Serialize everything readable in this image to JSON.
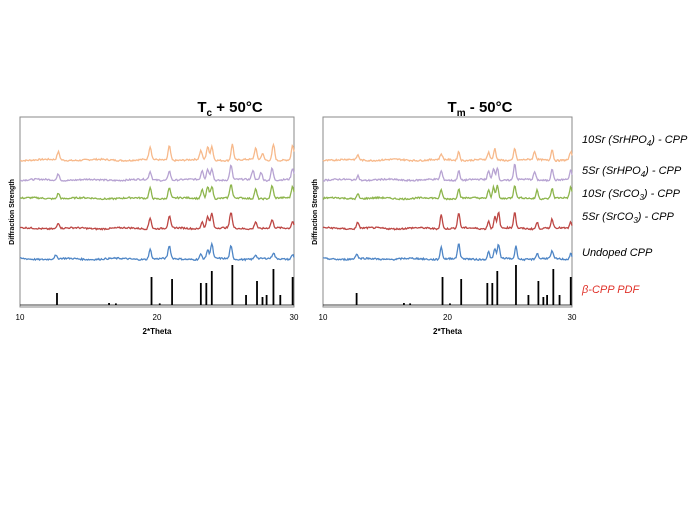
{
  "chart_data": [
    {
      "type": "line",
      "title": "T",
      "title_sub": "c",
      "title_rest": " + 50°C",
      "xlabel": "2*Theta",
      "ylabel": "Diffraction Strength",
      "xlim": [
        10,
        30
      ],
      "xticks": [
        "10",
        "20",
        "30"
      ],
      "grid": false,
      "series": [
        {
          "name": "10Sr (SrHPO4) - CPP",
          "color": "#F7B98B",
          "peaks": [
            [
              12.8,
              0.5
            ],
            [
              19.5,
              0.8
            ],
            [
              20.9,
              0.9
            ],
            [
              23.2,
              0.55
            ],
            [
              23.7,
              0.8
            ],
            [
              24.0,
              0.85
            ],
            [
              25.5,
              1.0
            ],
            [
              27.2,
              0.7
            ],
            [
              27.7,
              0.4
            ],
            [
              28.5,
              1.0
            ],
            [
              29.9,
              0.9
            ]
          ]
        },
        {
          "name": "5Sr (SrHPO4) - CPP",
          "color": "#B7A3D2",
          "peaks": [
            [
              12.8,
              0.4
            ],
            [
              19.5,
              0.5
            ],
            [
              20.9,
              0.6
            ],
            [
              23.3,
              0.6
            ],
            [
              23.7,
              0.7
            ],
            [
              24.0,
              0.75
            ],
            [
              25.4,
              0.9
            ],
            [
              27.0,
              0.6
            ],
            [
              27.6,
              0.5
            ],
            [
              28.4,
              0.75
            ],
            [
              29.9,
              0.7
            ]
          ]
        },
        {
          "name": "10Sr (SrCO3) - CPP",
          "color": "#8DB54C",
          "peaks": [
            [
              12.8,
              0.35
            ],
            [
              19.5,
              0.65
            ],
            [
              20.9,
              0.65
            ],
            [
              23.3,
              0.55
            ],
            [
              23.7,
              0.75
            ],
            [
              24.0,
              0.8
            ],
            [
              25.4,
              0.85
            ],
            [
              27.2,
              0.6
            ],
            [
              28.4,
              0.8
            ],
            [
              29.9,
              0.75
            ]
          ]
        },
        {
          "name": "5Sr (SrCO3) - CPP",
          "color": "#BD4744",
          "peaks": [
            [
              12.8,
              0.35
            ],
            [
              19.5,
              0.7
            ],
            [
              20.9,
              0.75
            ],
            [
              23.3,
              0.45
            ],
            [
              23.7,
              0.8
            ],
            [
              24.0,
              0.95
            ],
            [
              25.4,
              1.0
            ],
            [
              27.2,
              0.45
            ],
            [
              28.4,
              0.5
            ],
            [
              29.9,
              0.45
            ]
          ]
        },
        {
          "name": "Undoped CPP",
          "color": "#4F86C6",
          "peaks": [
            [
              12.6,
              0.2
            ],
            [
              19.5,
              0.6
            ],
            [
              20.9,
              0.8
            ],
            [
              23.2,
              0.3
            ],
            [
              23.7,
              0.55
            ],
            [
              24.0,
              0.9
            ],
            [
              25.4,
              0.8
            ],
            [
              27.2,
              0.25
            ],
            [
              28.5,
              0.35
            ],
            [
              29.9,
              0.3
            ]
          ]
        }
      ],
      "reference": {
        "name": "β-CPP PDF",
        "color": "#000000",
        "lines": [
          [
            12.7,
            0.3
          ],
          [
            16.5,
            0.05
          ],
          [
            17.0,
            0.04
          ],
          [
            19.6,
            0.7
          ],
          [
            20.2,
            0.04
          ],
          [
            21.1,
            0.65
          ],
          [
            23.2,
            0.55
          ],
          [
            23.6,
            0.55
          ],
          [
            24.0,
            0.85
          ],
          [
            25.5,
            1.0
          ],
          [
            26.5,
            0.25
          ],
          [
            27.3,
            0.6
          ],
          [
            27.7,
            0.2
          ],
          [
            28.0,
            0.25
          ],
          [
            28.5,
            0.9
          ],
          [
            29.0,
            0.25
          ],
          [
            29.9,
            0.7
          ]
        ]
      }
    },
    {
      "type": "line",
      "title": "T",
      "title_sub": "m",
      "title_rest": " - 50°C",
      "xlabel": "2*Theta",
      "ylabel": "Diffraction Strength",
      "xlim": [
        10,
        30
      ],
      "xticks": [
        "10",
        "20",
        "30"
      ],
      "grid": false,
      "series": [
        {
          "name": "10Sr (SrHPO4) - CPP",
          "color": "#F7B98B",
          "peaks": [
            [
              12.8,
              0.3
            ],
            [
              19.5,
              0.35
            ],
            [
              20.9,
              0.55
            ],
            [
              23.3,
              0.45
            ],
            [
              23.8,
              0.7
            ],
            [
              25.4,
              0.75
            ],
            [
              27.0,
              0.5
            ],
            [
              28.4,
              0.7
            ],
            [
              29.9,
              0.5
            ]
          ]
        },
        {
          "name": "5Sr (SrHPO4) - CPP",
          "color": "#B7A3D2",
          "peaks": [
            [
              12.8,
              0.3
            ],
            [
              19.5,
              0.55
            ],
            [
              20.9,
              0.6
            ],
            [
              23.3,
              0.55
            ],
            [
              23.7,
              0.75
            ],
            [
              24.0,
              0.8
            ],
            [
              25.4,
              1.0
            ],
            [
              27.0,
              0.5
            ],
            [
              28.4,
              0.75
            ],
            [
              29.9,
              0.55
            ]
          ]
        },
        {
          "name": "10Sr (SrCO3) - CPP",
          "color": "#8DB54C",
          "peaks": [
            [
              12.8,
              0.3
            ],
            [
              19.5,
              0.55
            ],
            [
              20.9,
              0.6
            ],
            [
              23.3,
              0.55
            ],
            [
              23.7,
              0.75
            ],
            [
              24.0,
              0.85
            ],
            [
              25.4,
              0.8
            ],
            [
              27.2,
              0.55
            ],
            [
              28.4,
              0.6
            ],
            [
              29.9,
              0.7
            ]
          ]
        },
        {
          "name": "5Sr (SrCO3) - CPP",
          "color": "#BD4744",
          "peaks": [
            [
              12.8,
              0.4
            ],
            [
              19.5,
              0.9
            ],
            [
              20.9,
              0.95
            ],
            [
              23.3,
              0.5
            ],
            [
              23.8,
              0.75
            ],
            [
              24.1,
              1.0
            ],
            [
              25.4,
              1.0
            ],
            [
              27.2,
              0.4
            ],
            [
              28.4,
              0.55
            ],
            [
              29.9,
              0.4
            ]
          ]
        },
        {
          "name": "Undoped CPP",
          "color": "#4F86C6",
          "peaks": [
            [
              12.7,
              0.3
            ],
            [
              19.5,
              0.75
            ],
            [
              20.9,
              0.95
            ],
            [
              23.3,
              0.45
            ],
            [
              23.8,
              0.6
            ],
            [
              24.1,
              0.9
            ],
            [
              25.5,
              0.8
            ],
            [
              27.2,
              0.35
            ],
            [
              28.4,
              0.45
            ],
            [
              29.9,
              0.35
            ]
          ]
        }
      ],
      "reference": {
        "name": "β-CPP PDF",
        "color": "#000000",
        "lines": [
          [
            12.7,
            0.3
          ],
          [
            16.5,
            0.05
          ],
          [
            17.0,
            0.04
          ],
          [
            19.6,
            0.7
          ],
          [
            20.2,
            0.04
          ],
          [
            21.1,
            0.65
          ],
          [
            23.2,
            0.55
          ],
          [
            23.6,
            0.55
          ],
          [
            24.0,
            0.85
          ],
          [
            25.5,
            1.0
          ],
          [
            26.5,
            0.25
          ],
          [
            27.3,
            0.6
          ],
          [
            27.7,
            0.2
          ],
          [
            28.0,
            0.25
          ],
          [
            28.5,
            0.9
          ],
          [
            29.0,
            0.25
          ],
          [
            29.9,
            0.7
          ]
        ]
      }
    }
  ],
  "legend": {
    "entries": [
      {
        "main": "10Sr (SrHPO",
        "sub": "4",
        "rest": ") - CPP",
        "color": "#000000"
      },
      {
        "main": "5Sr (SrHPO",
        "sub": "4",
        "rest": ") - CPP",
        "color": "#000000"
      },
      {
        "main": "10Sr (SrCO",
        "sub": "3",
        "rest": ") - CPP",
        "color": "#000000"
      },
      {
        "main": "5Sr (SrCO",
        "sub": "3",
        "rest": ") - CPP",
        "color": "#000000"
      },
      {
        "main": "Undoped CPP",
        "sub": "",
        "rest": "",
        "color": "#000000"
      },
      {
        "main": "β-CPP PDF",
        "sub": "",
        "rest": "",
        "color": "#E0332B"
      }
    ]
  }
}
